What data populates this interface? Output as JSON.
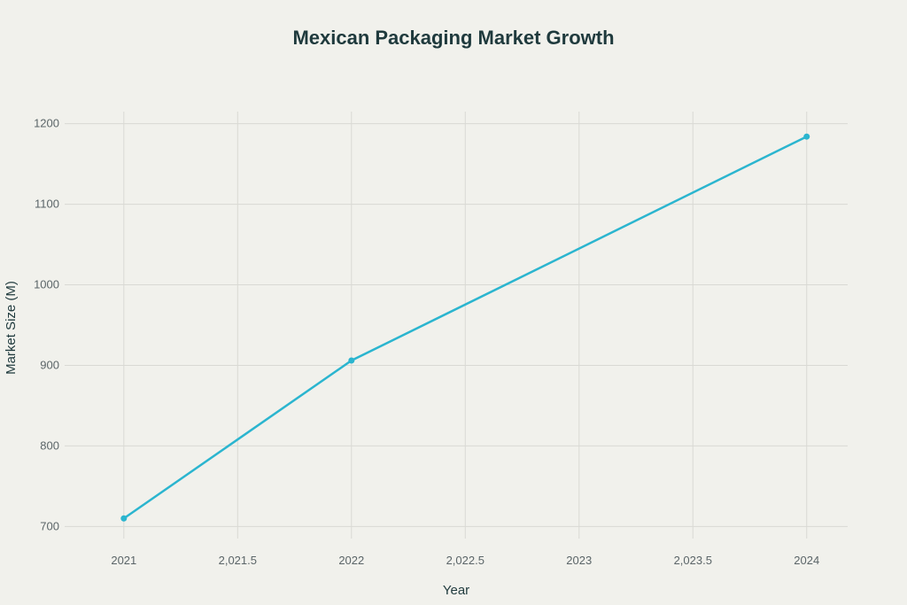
{
  "chart_data": {
    "type": "line",
    "title": "Mexican Packaging Market Growth",
    "xlabel": "Year",
    "ylabel": "Market Size (M)",
    "x_ticks": [
      "2021",
      "2,021.5",
      "2022",
      "2,022.5",
      "2023",
      "2,023.5",
      "2024"
    ],
    "x_tick_values": [
      2021,
      2021.5,
      2022,
      2022.5,
      2023,
      2023.5,
      2024
    ],
    "y_ticks": [
      700,
      800,
      900,
      1000,
      1100,
      1200
    ],
    "xlim": [
      2020.74,
      2024.18
    ],
    "ylim": [
      685,
      1215
    ],
    "grid": true,
    "series": [
      {
        "color": "#2bb5cf",
        "x": [
          2021,
          2022,
          2024
        ],
        "values": [
          710,
          906,
          1184
        ]
      }
    ]
  }
}
